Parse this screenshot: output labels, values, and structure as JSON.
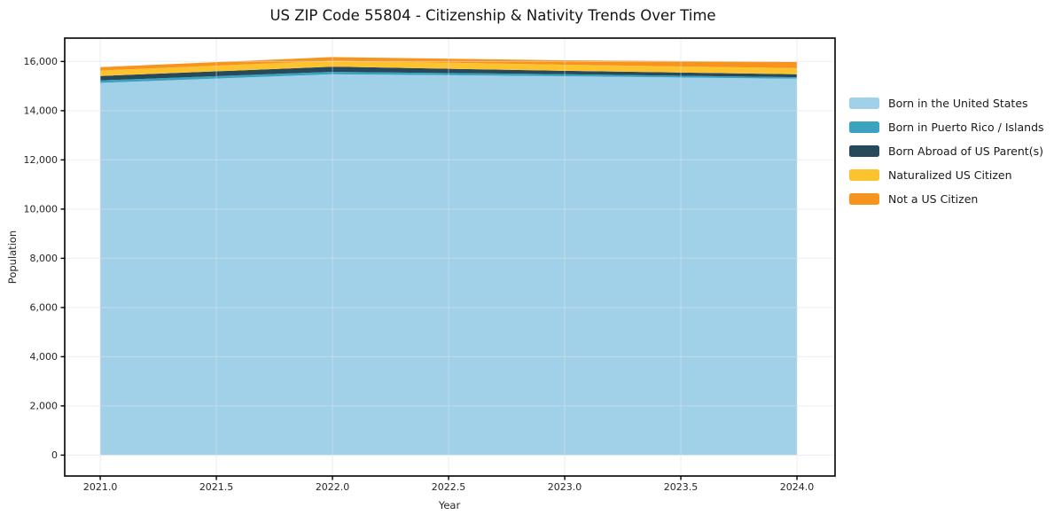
{
  "title": "US ZIP Code 55804 - Citizenship & Nativity Trends Over Time",
  "chart_data": {
    "type": "area",
    "stacked": true,
    "title": "US ZIP Code 55804 - Citizenship & Nativity Trends Over Time",
    "xlabel": "Year",
    "ylabel": "Population",
    "x": [
      2021,
      2022,
      2023,
      2024
    ],
    "series": [
      {
        "name": "Born in the United States",
        "color": "#a1d1e8",
        "values": [
          15130,
          15480,
          15400,
          15300
        ]
      },
      {
        "name": "Born in Puerto Rico / Islands",
        "color": "#3aa3bf",
        "values": [
          100,
          100,
          80,
          60
        ]
      },
      {
        "name": "Born Abroad of US Parent(s)",
        "color": "#26495c",
        "values": [
          180,
          210,
          140,
          120
        ]
      },
      {
        "name": "Naturalized US Citizen",
        "color": "#fdc32f",
        "values": [
          220,
          240,
          250,
          250
        ]
      },
      {
        "name": "Not a US Citizen",
        "color": "#f7941d",
        "values": [
          140,
          150,
          180,
          250
        ]
      }
    ],
    "x_ticks": [
      2021.0,
      2021.5,
      2022.0,
      2022.5,
      2023.0,
      2023.5,
      2024.0
    ],
    "x_tick_labels": [
      "2021.0",
      "2021.5",
      "2022.0",
      "2022.5",
      "2023.0",
      "2023.5",
      "2024.0"
    ],
    "y_ticks": [
      0,
      2000,
      4000,
      6000,
      8000,
      10000,
      12000,
      14000,
      16000
    ],
    "y_tick_labels": [
      "0",
      "2,000",
      "4,000",
      "6,000",
      "8,000",
      "10,000",
      "12,000",
      "14,000",
      "16,000"
    ],
    "xlim": [
      2020.847,
      2024.164
    ],
    "ylim": [
      -850,
      16950
    ],
    "grid": true,
    "legend_position": "right",
    "colors": {
      "spine": "#000000",
      "grid": "#dfdfe8",
      "tick_label": "#262626",
      "background": "#ffffff"
    }
  }
}
